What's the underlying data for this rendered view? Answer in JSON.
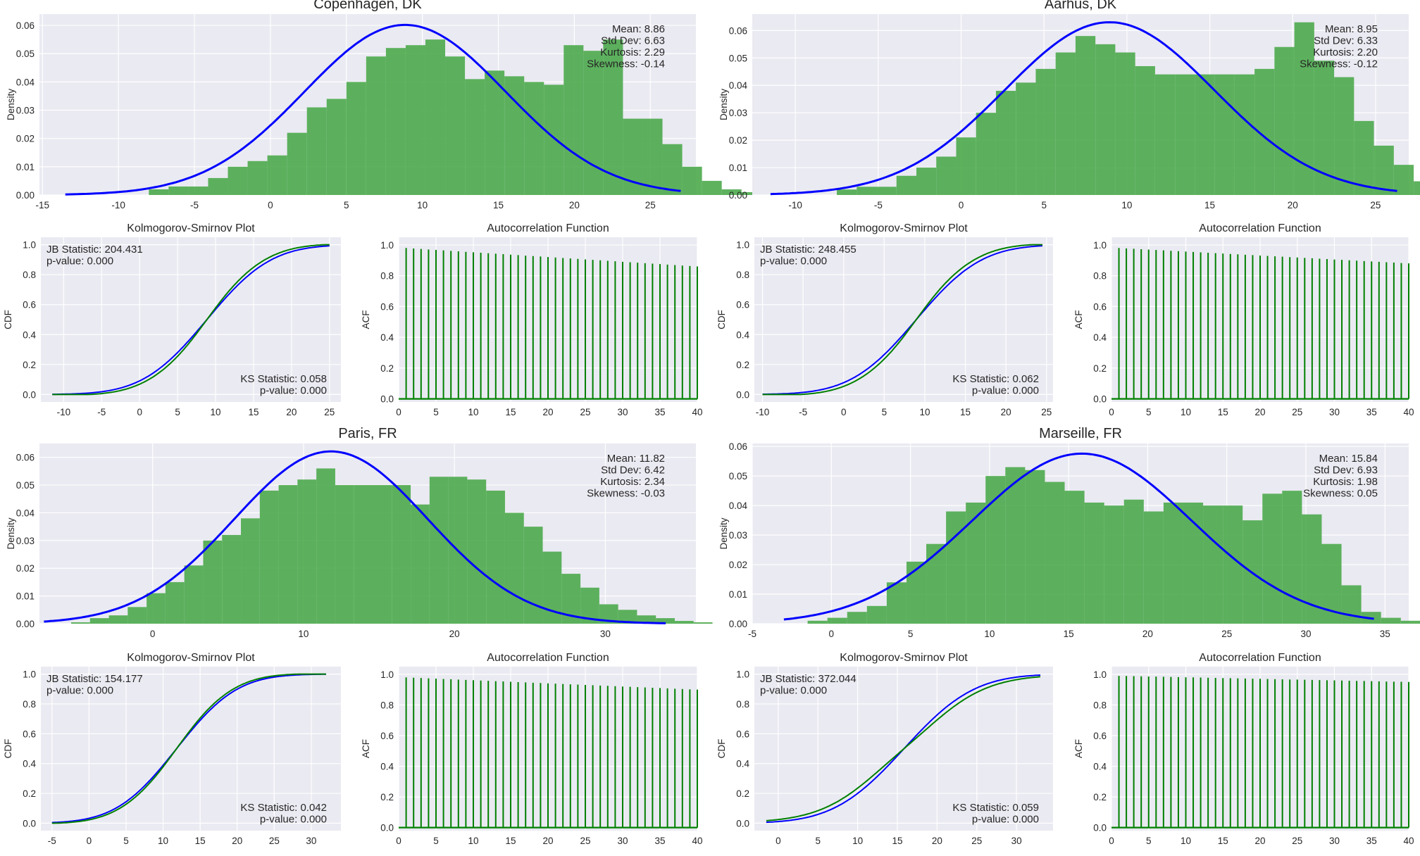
{
  "chart_data": [
    {
      "type": "bar",
      "title": "Copenhagen, DK",
      "ylabel": "Density",
      "x_ticks": [
        -15,
        -10,
        -5,
        0,
        5,
        10,
        15,
        20,
        25
      ],
      "y_ticks": [
        "0.00",
        "0.01",
        "0.02",
        "0.03",
        "0.04",
        "0.05",
        "0.06"
      ],
      "xlim": [
        -15.2,
        28
      ],
      "ylim": [
        0,
        0.064
      ],
      "bins": {
        "start": -8,
        "width": 1.3,
        "values": [
          0.002,
          0.003,
          0.003,
          0.006,
          0.01,
          0.012,
          0.014,
          0.022,
          0.031,
          0.034,
          0.04,
          0.049,
          0.052,
          0.053,
          0.055,
          0.049,
          0.041,
          0.044,
          0.042,
          0.04,
          0.039,
          0.053,
          0.051,
          0.055,
          0.027,
          0.027,
          0.018,
          0.01,
          0.005,
          0.002,
          0.001
        ]
      },
      "fit": {
        "label": "normal-fit",
        "mean": 8.86,
        "sd": 6.63,
        "x_range": [
          -13.5,
          27
        ]
      },
      "stats": [
        "Mean: 8.86",
        "Std Dev: 6.63",
        "Kurtosis: 2.29",
        "Skewness: -0.14"
      ],
      "colors": {
        "bars": "#4daa4d",
        "fit": "#0000ff"
      }
    },
    {
      "type": "line",
      "title": "Kolmogorov-Smirnov Plot",
      "ylabel": "CDF",
      "x_ticks": [
        -10,
        -5,
        0,
        5,
        10,
        15,
        20,
        25
      ],
      "y_ticks": [
        "0.0",
        "0.2",
        "0.4",
        "0.6",
        "0.8",
        "1.0"
      ],
      "xlim": [
        -13,
        26.5
      ],
      "ylim": [
        -0.05,
        1.05
      ],
      "series": [
        {
          "kind": "normal-cdf",
          "mean": 8.86,
          "sd": 6.63,
          "color": "#0000ff"
        },
        {
          "kind": "empirical-cdf",
          "mean": 8.86,
          "sd": 6.63,
          "bulge": 0.03,
          "color": "#008000"
        }
      ],
      "x_range": [
        -11.5,
        25
      ],
      "jb": [
        "JB Statistic: 204.431",
        "p-value: 0.000"
      ],
      "ks": [
        "KS Statistic: 0.058",
        "p-value: 0.000"
      ]
    },
    {
      "type": "bar",
      "title": "Autocorrelation Function",
      "ylabel": "ACF",
      "x_ticks": [
        0,
        5,
        10,
        15,
        20,
        25,
        30,
        35,
        40
      ],
      "y_ticks": [
        "0.0",
        "0.2",
        "0.4",
        "0.6",
        "0.8",
        "1.0"
      ],
      "xlim": [
        0,
        40
      ],
      "ylim": [
        -0.02,
        1.05
      ],
      "lags": 40,
      "acf_first": 0.98,
      "acf_last": 0.86,
      "colors": {
        "stems": "#008000"
      }
    },
    {
      "type": "bar",
      "title": "Aarhus, DK",
      "ylabel": "Density",
      "x_ticks": [
        -10,
        -5,
        0,
        5,
        10,
        15,
        20,
        25
      ],
      "y_ticks": [
        "0.00",
        "0.01",
        "0.02",
        "0.03",
        "0.04",
        "0.05",
        "0.06"
      ],
      "xlim": [
        -12.6,
        27
      ],
      "ylim": [
        0,
        0.066
      ],
      "bins": {
        "start": -7.5,
        "width": 1.2,
        "values": [
          0.002,
          0.003,
          0.003,
          0.007,
          0.01,
          0.014,
          0.021,
          0.03,
          0.038,
          0.041,
          0.046,
          0.052,
          0.058,
          0.055,
          0.052,
          0.047,
          0.044,
          0.044,
          0.044,
          0.044,
          0.044,
          0.046,
          0.054,
          0.063,
          0.049,
          0.043,
          0.027,
          0.018,
          0.011,
          0.005,
          0.002,
          0.001
        ]
      },
      "fit": {
        "label": "normal-fit",
        "mean": 8.95,
        "sd": 6.33,
        "x_range": [
          -11.5,
          26.3
        ]
      },
      "stats": [
        "Mean: 8.95",
        "Std Dev: 6.33",
        "Kurtosis: 2.20",
        "Skewness: -0.12"
      ],
      "colors": {
        "bars": "#4daa4d",
        "fit": "#0000ff"
      }
    },
    {
      "type": "line",
      "title": "Kolmogorov-Smirnov Plot",
      "ylabel": "CDF",
      "x_ticks": [
        -10,
        -5,
        0,
        5,
        10,
        15,
        20,
        25
      ],
      "y_ticks": [
        "0.0",
        "0.2",
        "0.4",
        "0.6",
        "0.8",
        "1.0"
      ],
      "xlim": [
        -11,
        25.8
      ],
      "ylim": [
        -0.05,
        1.05
      ],
      "series": [
        {
          "kind": "normal-cdf",
          "mean": 8.95,
          "sd": 6.33,
          "color": "#0000ff"
        },
        {
          "kind": "empirical-cdf",
          "mean": 8.95,
          "sd": 6.33,
          "bulge": 0.035,
          "color": "#008000"
        }
      ],
      "x_range": [
        -10,
        24.5
      ],
      "jb": [
        "JB Statistic: 248.455",
        "p-value: 0.000"
      ],
      "ks": [
        "KS Statistic: 0.062",
        "p-value: 0.000"
      ]
    },
    {
      "type": "bar",
      "title": "Autocorrelation Function",
      "ylabel": "ACF",
      "x_ticks": [
        0,
        5,
        10,
        15,
        20,
        25,
        30,
        35,
        40
      ],
      "y_ticks": [
        "0.0",
        "0.2",
        "0.4",
        "0.6",
        "0.8",
        "1.0"
      ],
      "xlim": [
        0,
        40
      ],
      "ylim": [
        -0.02,
        1.05
      ],
      "lags": 40,
      "acf_first": 0.98,
      "acf_last": 0.88,
      "colors": {
        "stems": "#008000"
      }
    },
    {
      "type": "bar",
      "title": "Paris, FR",
      "ylabel": "Density",
      "x_ticks": [
        0,
        10,
        20,
        30
      ],
      "y_ticks": [
        "0.00",
        "0.01",
        "0.02",
        "0.03",
        "0.04",
        "0.05",
        "0.06"
      ],
      "xlim": [
        -7.5,
        36
      ],
      "ylim": [
        0,
        0.065
      ],
      "bins": {
        "start": -5.4,
        "width": 1.25,
        "values": [
          0.0005,
          0.002,
          0.003,
          0.006,
          0.011,
          0.015,
          0.021,
          0.03,
          0.032,
          0.038,
          0.048,
          0.05,
          0.052,
          0.056,
          0.05,
          0.05,
          0.05,
          0.05,
          0.043,
          0.053,
          0.053,
          0.052,
          0.048,
          0.04,
          0.035,
          0.026,
          0.018,
          0.013,
          0.007,
          0.005,
          0.003,
          0.002,
          0.001,
          0.0005
        ]
      },
      "fit": {
        "label": "normal-fit",
        "mean": 11.82,
        "sd": 6.42,
        "x_range": [
          -7.2,
          34
        ]
      },
      "stats": [
        "Mean: 11.82",
        "Std Dev: 6.42",
        "Kurtosis: 2.34",
        "Skewness: -0.03"
      ],
      "colors": {
        "bars": "#4daa4d",
        "fit": "#0000ff"
      }
    },
    {
      "type": "line",
      "title": "Kolmogorov-Smirnov Plot",
      "ylabel": "CDF",
      "x_ticks": [
        -5,
        0,
        5,
        10,
        15,
        20,
        25,
        30
      ],
      "y_ticks": [
        "0.0",
        "0.2",
        "0.4",
        "0.6",
        "0.8",
        "1.0"
      ],
      "xlim": [
        -6.5,
        34
      ],
      "ylim": [
        -0.05,
        1.05
      ],
      "series": [
        {
          "kind": "normal-cdf",
          "mean": 11.82,
          "sd": 6.42,
          "color": "#0000ff"
        },
        {
          "kind": "empirical-cdf",
          "mean": 11.82,
          "sd": 6.42,
          "bulge": 0.02,
          "color": "#008000"
        }
      ],
      "x_range": [
        -5,
        32
      ],
      "jb": [
        "JB Statistic: 154.177",
        "p-value: 0.000"
      ],
      "ks": [
        "KS Statistic: 0.042",
        "p-value: 0.000"
      ]
    },
    {
      "type": "bar",
      "title": "Autocorrelation Function",
      "ylabel": "ACF",
      "x_ticks": [
        0,
        5,
        10,
        15,
        20,
        25,
        30,
        35,
        40
      ],
      "y_ticks": [
        "0.0",
        "0.2",
        "0.4",
        "0.6",
        "0.8",
        "1.0"
      ],
      "xlim": [
        0,
        40
      ],
      "ylim": [
        -0.02,
        1.05
      ],
      "lags": 40,
      "acf_first": 0.98,
      "acf_last": 0.9,
      "colors": {
        "stems": "#008000"
      }
    },
    {
      "type": "bar",
      "title": "Marseille, FR",
      "ylabel": "Density",
      "x_ticks": [
        -5,
        0,
        5,
        10,
        15,
        20,
        25,
        30,
        35
      ],
      "y_ticks": [
        "0.00",
        "0.01",
        "0.02",
        "0.03",
        "0.04",
        "0.05",
        "0.06"
      ],
      "xlim": [
        -5,
        36.5
      ],
      "ylim": [
        0,
        0.061
      ],
      "bins": {
        "start": -1.5,
        "width": 1.25,
        "values": [
          0.001,
          0.002,
          0.004,
          0.006,
          0.014,
          0.021,
          0.027,
          0.038,
          0.041,
          0.05,
          0.053,
          0.052,
          0.048,
          0.045,
          0.041,
          0.04,
          0.042,
          0.038,
          0.041,
          0.041,
          0.04,
          0.04,
          0.035,
          0.044,
          0.045,
          0.037,
          0.027,
          0.013,
          0.004,
          0.002,
          0.001
        ]
      },
      "fit": {
        "label": "normal-fit",
        "mean": 15.84,
        "sd": 6.93,
        "x_range": [
          -3,
          34.3
        ]
      },
      "stats": [
        "Mean: 15.84",
        "Std Dev: 6.93",
        "Kurtosis: 1.98",
        "Skewness: 0.05"
      ],
      "colors": {
        "bars": "#4daa4d",
        "fit": "#0000ff"
      }
    },
    {
      "type": "line",
      "title": "Kolmogorov-Smirnov Plot",
      "ylabel": "CDF",
      "x_ticks": [
        0,
        5,
        10,
        15,
        20,
        25,
        30
      ],
      "y_ticks": [
        "0.0",
        "0.2",
        "0.4",
        "0.6",
        "0.8",
        "1.0"
      ],
      "xlim": [
        -3,
        34.6
      ],
      "ylim": [
        -0.05,
        1.05
      ],
      "series": [
        {
          "kind": "normal-cdf",
          "mean": 15.84,
          "sd": 6.93,
          "color": "#0000ff"
        },
        {
          "kind": "empirical-cdf",
          "mean": 15.84,
          "sd": 6.93,
          "bulge": -0.04,
          "color": "#008000"
        }
      ],
      "x_range": [
        -1.5,
        33
      ],
      "jb": [
        "JB Statistic: 372.044",
        "p-value: 0.000"
      ],
      "ks": [
        "KS Statistic: 0.059",
        "p-value: 0.000"
      ]
    },
    {
      "type": "bar",
      "title": "Autocorrelation Function",
      "ylabel": "ACF",
      "x_ticks": [
        0,
        5,
        10,
        15,
        20,
        25,
        30,
        35,
        40
      ],
      "y_ticks": [
        "0.0",
        "0.2",
        "0.4",
        "0.6",
        "0.8",
        "1.0"
      ],
      "xlim": [
        0,
        40
      ],
      "ylim": [
        -0.02,
        1.05
      ],
      "lags": 40,
      "acf_first": 0.99,
      "acf_last": 0.95,
      "colors": {
        "stems": "#008000"
      }
    }
  ],
  "style": {
    "panel_bg": "#eaeaf2",
    "grid": "#ffffff",
    "text": "#262626"
  }
}
